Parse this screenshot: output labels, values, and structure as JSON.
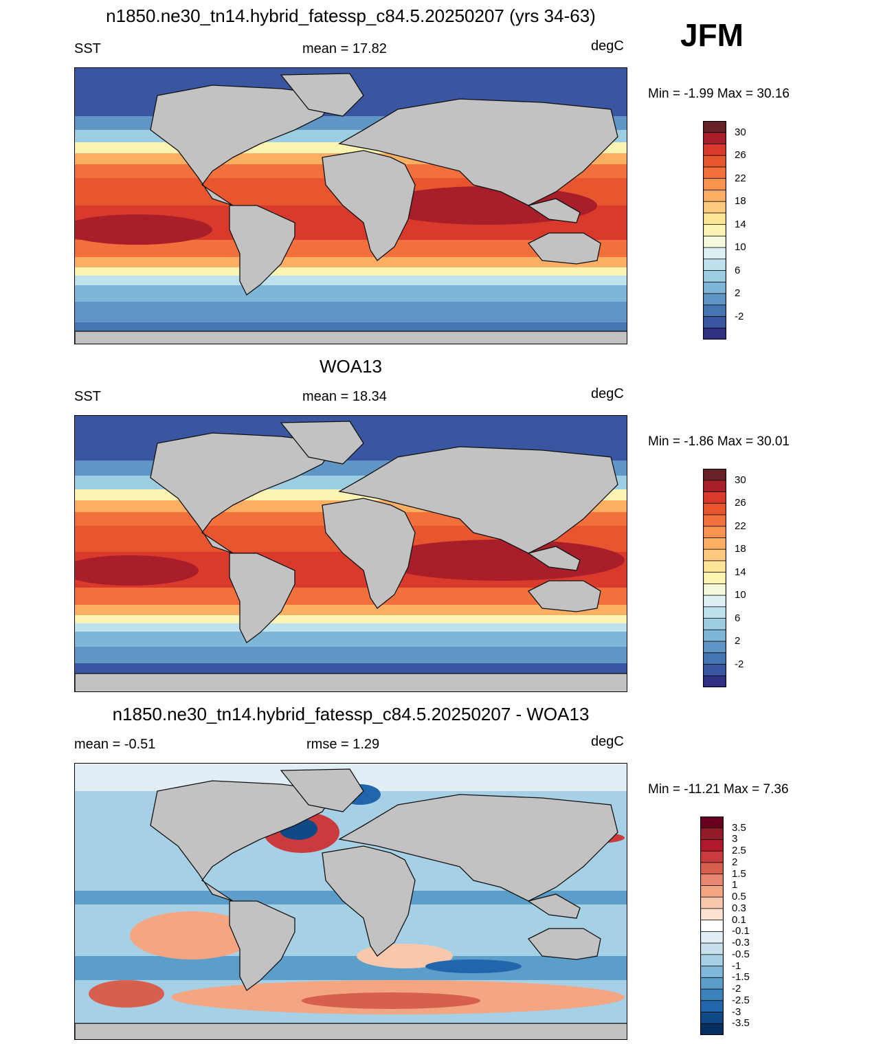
{
  "season_label": "JFM",
  "panels": [
    {
      "title": "n1850.ne30_tn14.hybrid_fatessp_c84.5.20250207 (yrs 34-63)",
      "left_label": "SST",
      "center_label": "mean =  17.82",
      "right_label": "degC",
      "minmax": "Min =  -1.99 Max =  30.16",
      "colorbar_labels": [
        "30",
        "26",
        "22",
        "18",
        "14",
        "10",
        "6",
        "2",
        "-2"
      ]
    },
    {
      "title": "WOA13",
      "left_label": "SST",
      "center_label": "mean =  18.34",
      "right_label": "degC",
      "minmax": "Min =  -1.86 Max =  30.01",
      "colorbar_labels": [
        "30",
        "26",
        "22",
        "18",
        "14",
        "10",
        "6",
        "2",
        "-2"
      ]
    },
    {
      "title": "n1850.ne30_tn14.hybrid_fatessp_c84.5.20250207 - WOA13",
      "left_label": "mean =  -0.51",
      "center_label": "rmse =   1.29",
      "right_label": "degC",
      "minmax": "Min = -11.21 Max =   7.36",
      "colorbar_labels": [
        "3.5",
        "3",
        "2.5",
        "2",
        "1.5",
        "1",
        "0.5",
        "0.3",
        "0.1",
        "-0.1",
        "-0.3",
        "-0.5",
        "-1",
        "-1.5",
        "-2",
        "-2.5",
        "-3",
        "-3.5"
      ]
    }
  ],
  "colors": {
    "land": "#c2c2c2",
    "sst_scale": [
      "#652227",
      "#a81e2b",
      "#d93a2c",
      "#e8562f",
      "#f2703c",
      "#f9934f",
      "#fcae62",
      "#fdc980",
      "#fde597",
      "#fdf4b4",
      "#f3f9da",
      "#dcf0f3",
      "#bde2ee",
      "#9dcde3",
      "#7eb6d8",
      "#5f96c6",
      "#4675b3",
      "#3b56a0",
      "#313082"
    ],
    "diff_scale": [
      "#67001f",
      "#921c2a",
      "#b2182b",
      "#c93b3c",
      "#d6604d",
      "#e7876f",
      "#f4a582",
      "#f9c8ac",
      "#fde3d2",
      "#ffffff",
      "#e1eef6",
      "#c8e0ee",
      "#a6d0e5",
      "#7fb8d9",
      "#5a9ec9",
      "#3a83bb",
      "#2166ac",
      "#0f4a86",
      "#053061"
    ]
  }
}
